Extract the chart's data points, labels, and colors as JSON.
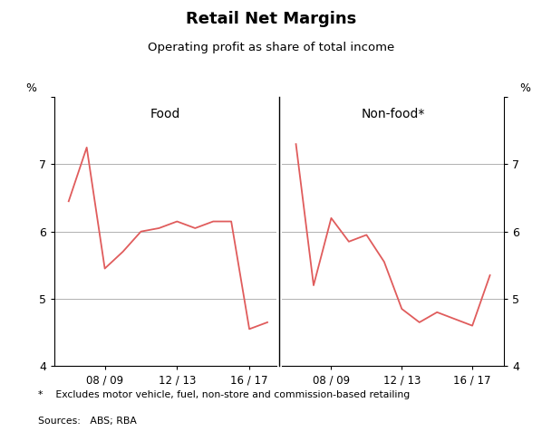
{
  "title": "Retail Net Margins",
  "subtitle": "Operating profit as share of total income",
  "title_fontsize": 13,
  "subtitle_fontsize": 9.5,
  "ylabel_left": "%",
  "ylabel_right": "%",
  "ylim": [
    4,
    8
  ],
  "yticks": [
    4,
    5,
    6,
    7,
    8
  ],
  "line_color": "#e05c5c",
  "food_label": "Food",
  "nonfood_label": "Non-food*",
  "food_x": [
    2006.0,
    2007.0,
    2008.0,
    2009.0,
    2010.0,
    2011.0,
    2012.0,
    2013.0,
    2014.0,
    2015.0,
    2016.0,
    2017.0
  ],
  "food_y": [
    6.45,
    7.25,
    5.45,
    5.7,
    6.0,
    6.05,
    6.15,
    6.05,
    6.15,
    6.15,
    4.55,
    4.65
  ],
  "nonfood_x": [
    2006.0,
    2007.0,
    2008.0,
    2009.0,
    2010.0,
    2011.0,
    2012.0,
    2013.0,
    2014.0,
    2015.0,
    2016.0,
    2017.0
  ],
  "nonfood_y": [
    7.3,
    5.2,
    6.2,
    5.85,
    5.95,
    5.55,
    4.85,
    4.65,
    4.8,
    4.7,
    4.6,
    5.35
  ],
  "xtick_positions": [
    2008,
    2012,
    2016
  ],
  "xtick_labels": [
    "08 / 09",
    "12 / 13",
    "16 / 17"
  ],
  "footnote": "*    Excludes motor vehicle, fuel, non-store and commission-based retailing",
  "sources": "Sources:   ABS; RBA",
  "background_color": "#ffffff",
  "grid_color": "#b0b0b0"
}
